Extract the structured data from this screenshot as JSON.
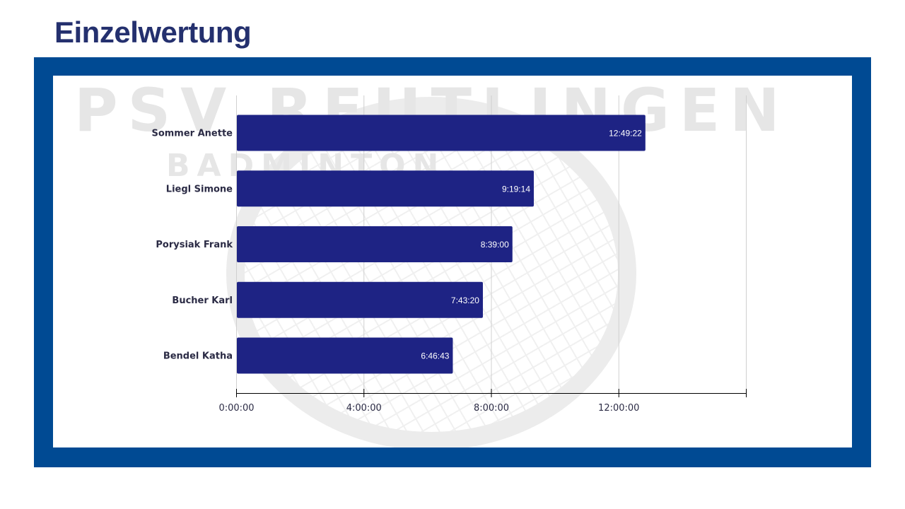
{
  "page": {
    "title": "Einzelwertung",
    "watermark_lines": [
      "PSV REUTLINGEN",
      "BADMINTON"
    ]
  },
  "colors": {
    "frame": "#004a93",
    "bar": "#1e2384",
    "title": "#24306e"
  },
  "chart_data": {
    "type": "bar",
    "orientation": "horizontal",
    "title": "",
    "xlabel": "",
    "ylabel": "",
    "categories": [
      "Sommer Anette",
      "Liegl Simone",
      "Porysiak Frank",
      "Bucher Karl",
      "Bendel Katha"
    ],
    "values_hours": [
      12.8228,
      9.3206,
      8.65,
      7.7222,
      6.7786
    ],
    "value_labels": [
      "12:49:22",
      "9:19:14",
      "8:39:00",
      "7:43:20",
      "6:46:43"
    ],
    "xlim_hours": [
      0,
      16
    ],
    "x_ticks_hours": [
      0,
      4,
      8,
      12,
      16
    ],
    "x_tick_labels": [
      "0:00:00",
      "4:00:00",
      "8:00:00",
      "12:00:00",
      ""
    ],
    "grid": true,
    "legend": "none"
  }
}
